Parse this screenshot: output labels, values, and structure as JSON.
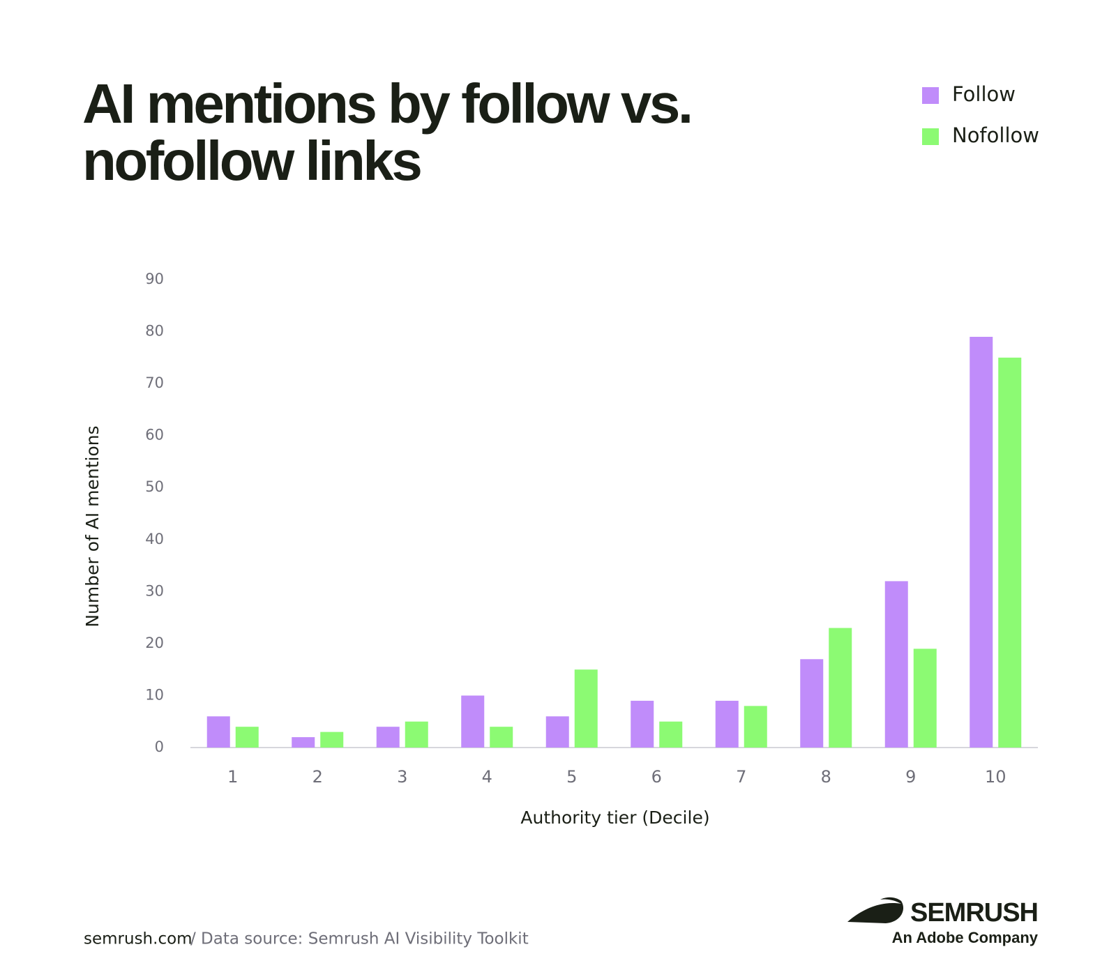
{
  "chart_data": {
    "type": "bar",
    "title": "AI mentions by follow vs. nofollow links",
    "x_label": "Authority tier (Decile)",
    "y_label": "Number of AI mentions",
    "categories": [
      "1",
      "2",
      "3",
      "4",
      "5",
      "6",
      "7",
      "8",
      "9",
      "10"
    ],
    "series": [
      {
        "name": "Follow",
        "color": "#c08cfa",
        "values": [
          6,
          2,
          4,
          10,
          6,
          9,
          9,
          17,
          32,
          79
        ]
      },
      {
        "name": "Nofollow",
        "color": "#8cfa73",
        "values": [
          4,
          3,
          5,
          4,
          15,
          5,
          8,
          23,
          19,
          75
        ]
      }
    ],
    "ylim": [
      0,
      90
    ],
    "yticks": [
      0,
      10,
      20,
      30,
      40,
      50,
      60,
      70,
      80,
      90
    ],
    "grid": false,
    "legend": "top-right"
  },
  "footer": {
    "site": "semrush.com",
    "source": "/ Data source: Semrush AI Visibility Toolkit",
    "brand": "SEMRUSH",
    "tagline": "An Adobe Company"
  }
}
